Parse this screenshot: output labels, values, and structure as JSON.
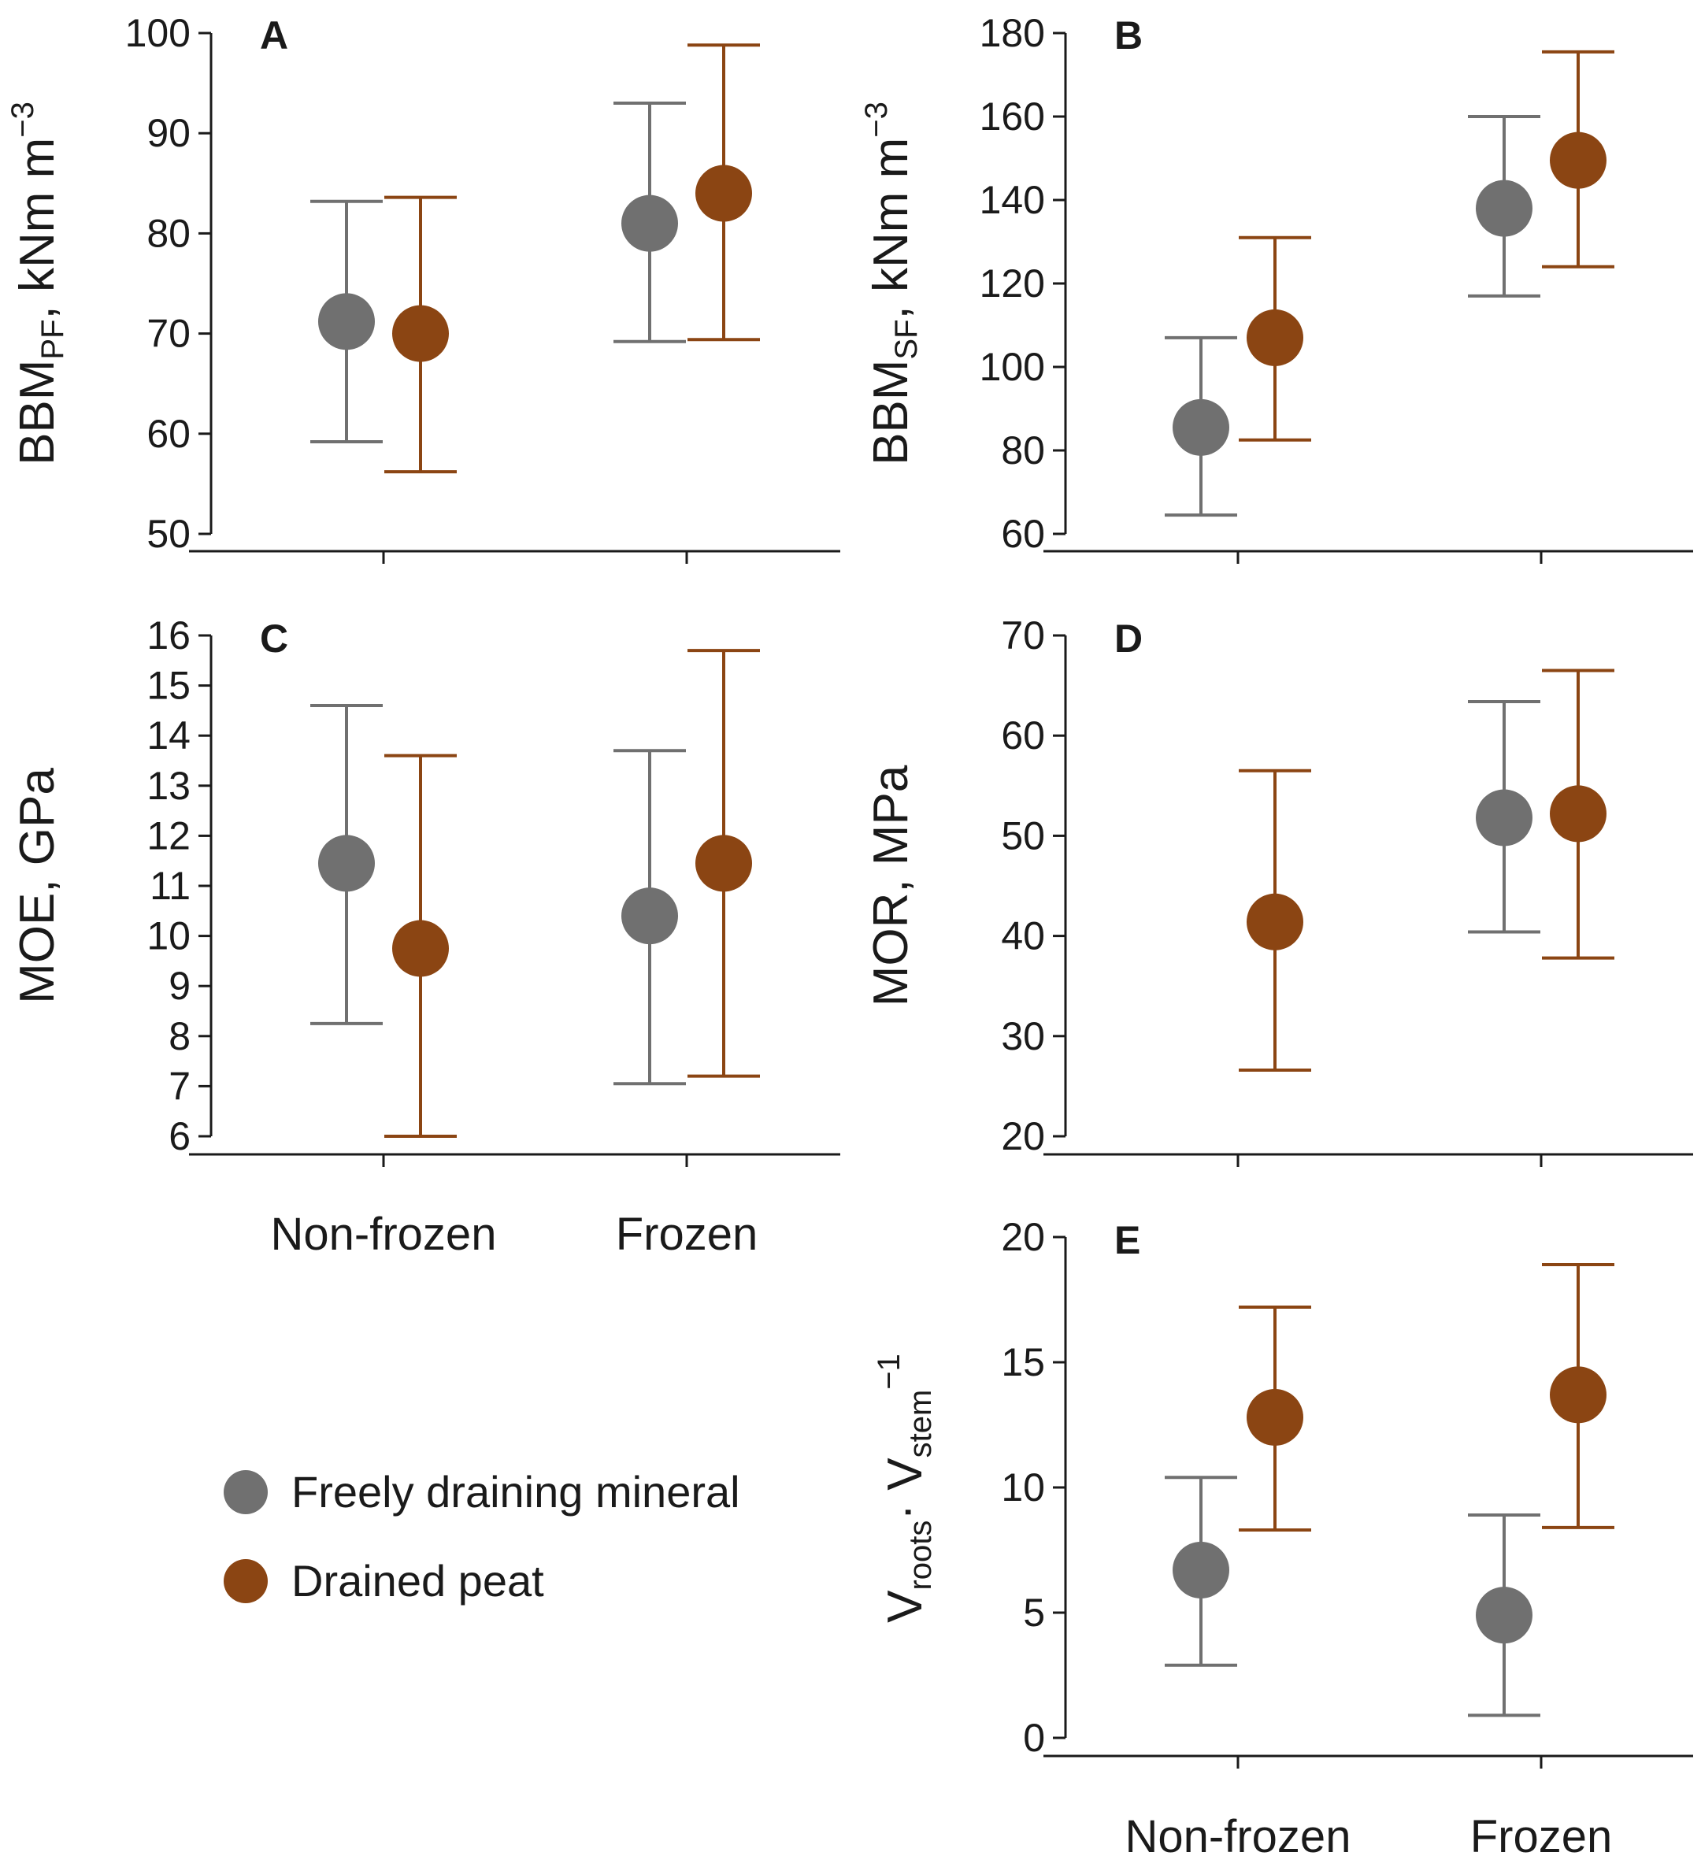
{
  "colors": {
    "mineral": "#707070",
    "peat": "#8b4513",
    "axis": "#1a1a1a"
  },
  "chart_data": [
    {
      "type": "scatter",
      "panel": "A",
      "ylabel": {
        "main": "BBM",
        "sub": "PF",
        "rest": ", kNm m",
        "sup": "−3"
      },
      "ylim": [
        50,
        100
      ],
      "yticks": [
        50,
        60,
        70,
        80,
        90,
        100
      ],
      "categories": [
        "Non-frozen",
        "Frozen"
      ],
      "series": [
        {
          "name": "Freely draining mineral",
          "values": [
            71.2,
            81.0
          ],
          "lower": [
            59.2,
            69.2
          ],
          "upper": [
            83.2,
            93.0
          ]
        },
        {
          "name": "Drained peat",
          "values": [
            70.0,
            84.0
          ],
          "lower": [
            56.2,
            69.4
          ],
          "upper": [
            83.6,
            98.8
          ]
        }
      ]
    },
    {
      "type": "scatter",
      "panel": "B",
      "ylabel": {
        "main": "BBM",
        "sub": "SF",
        "rest": ", kNm m",
        "sup": "−3"
      },
      "ylim": [
        60,
        180
      ],
      "yticks": [
        60,
        80,
        100,
        120,
        140,
        160,
        180
      ],
      "categories": [
        "Non-frozen",
        "Frozen"
      ],
      "series": [
        {
          "name": "Freely draining mineral",
          "values": [
            85.5,
            138.0
          ],
          "lower": [
            64.5,
            117.0
          ],
          "upper": [
            107.0,
            160.0
          ]
        },
        {
          "name": "Drained peat",
          "values": [
            107.0,
            149.5
          ],
          "lower": [
            82.5,
            124.0
          ],
          "upper": [
            131.0,
            175.5
          ]
        }
      ]
    },
    {
      "type": "scatter",
      "panel": "C",
      "ylabel": {
        "main": "MOE, GPa",
        "sub": "",
        "rest": "",
        "sup": ""
      },
      "ylim": [
        6,
        16
      ],
      "yticks": [
        6,
        7,
        8,
        9,
        10,
        11,
        12,
        13,
        14,
        15,
        16
      ],
      "categories": [
        "Non-frozen",
        "Frozen"
      ],
      "series": [
        {
          "name": "Freely draining mineral",
          "values": [
            11.45,
            10.4
          ],
          "lower": [
            8.25,
            7.05
          ],
          "upper": [
            14.6,
            13.7
          ]
        },
        {
          "name": "Drained peat",
          "values": [
            9.75,
            11.45
          ],
          "lower": [
            6.0,
            7.2
          ],
          "upper": [
            13.6,
            15.7
          ]
        }
      ]
    },
    {
      "type": "scatter",
      "panel": "D",
      "ylabel": {
        "main": "MOR, MPa",
        "sub": "",
        "rest": "",
        "sup": ""
      },
      "ylim": [
        20,
        70
      ],
      "yticks": [
        20,
        30,
        40,
        50,
        60,
        70
      ],
      "categories": [
        "Non-frozen",
        "Frozen"
      ],
      "series": [
        {
          "name": "Freely draining mineral",
          "values": [
            null,
            51.8
          ],
          "lower": [
            null,
            40.4
          ],
          "upper": [
            null,
            63.4
          ]
        },
        {
          "name": "Drained peat",
          "values": [
            41.4,
            52.2
          ],
          "lower": [
            26.6,
            37.8
          ],
          "upper": [
            56.5,
            66.5
          ]
        }
      ]
    },
    {
      "type": "scatter",
      "panel": "E",
      "ylabel": {
        "main": "V",
        "sub": "roots",
        "rest": "· V",
        "sub2": "stem",
        "sup": "−1"
      },
      "ylim": [
        0,
        20
      ],
      "yticks": [
        0,
        5,
        10,
        15,
        20
      ],
      "categories": [
        "Non-frozen",
        "Frozen"
      ],
      "series": [
        {
          "name": "Freely draining mineral",
          "values": [
            6.7,
            4.9
          ],
          "lower": [
            2.9,
            0.9
          ],
          "upper": [
            10.4,
            8.9
          ]
        },
        {
          "name": "Drained peat",
          "values": [
            12.8,
            13.7
          ],
          "lower": [
            8.3,
            8.4
          ],
          "upper": [
            17.2,
            18.9
          ]
        }
      ]
    }
  ],
  "legend": [
    {
      "label": "Freely draining mineral",
      "color_key": "mineral"
    },
    {
      "label": "Drained peat",
      "color_key": "peat"
    }
  ],
  "xaxis_labels": [
    "Non-frozen",
    "Frozen"
  ]
}
